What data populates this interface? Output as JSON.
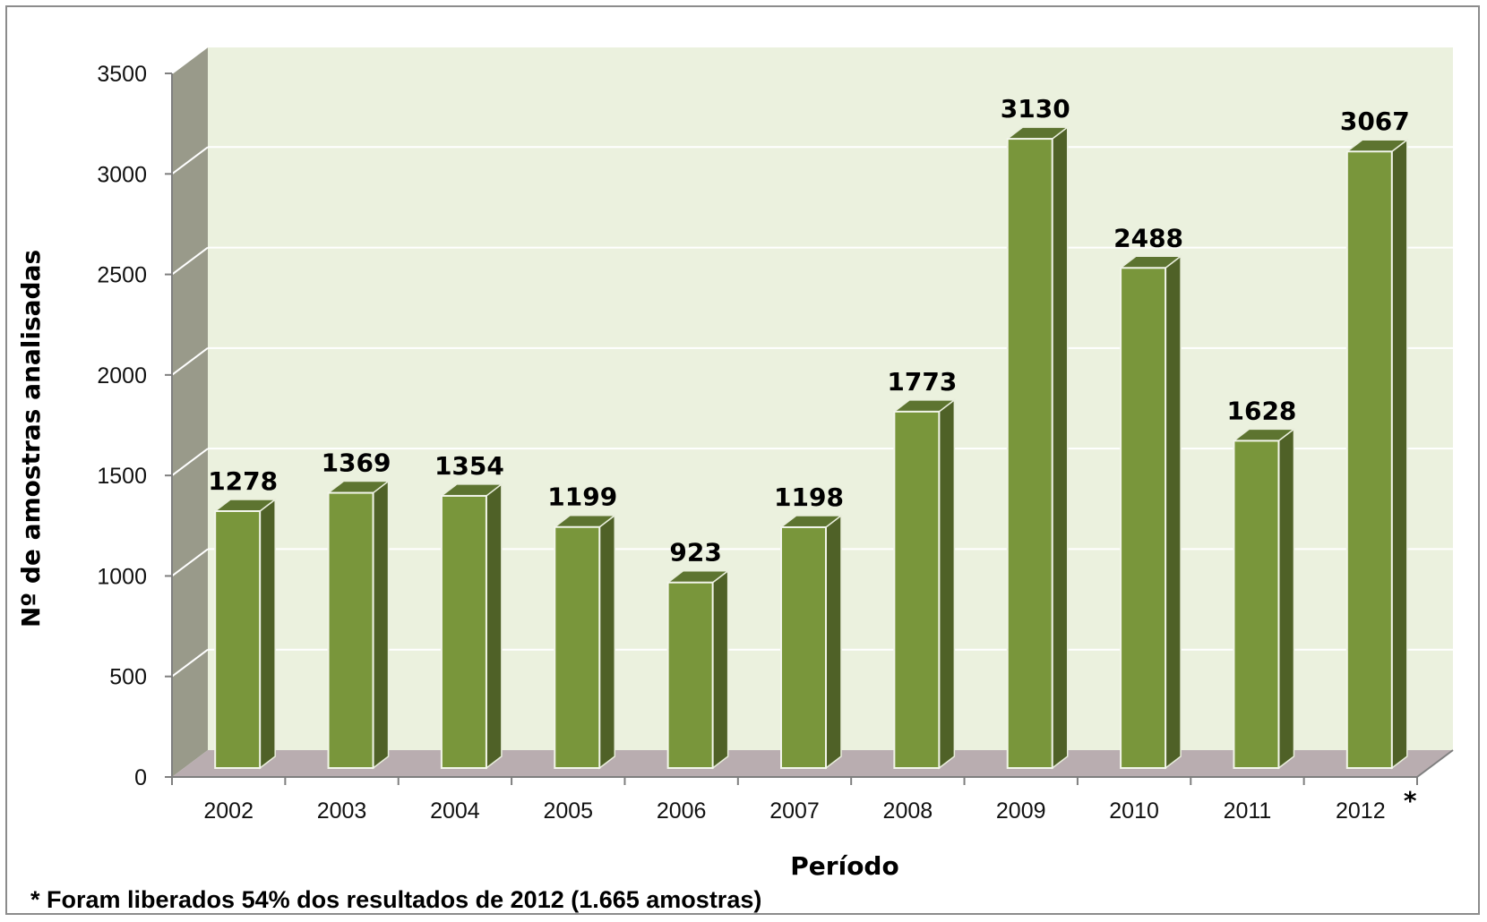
{
  "chart_data": {
    "type": "bar",
    "style": "3d-column",
    "categories": [
      "2002",
      "2003",
      "2004",
      "2005",
      "2006",
      "2007",
      "2008",
      "2009",
      "2010",
      "2011",
      "2012"
    ],
    "category_marks": [
      "",
      "",
      "",
      "",
      "",
      "",
      "",
      "",
      "",
      "",
      "*"
    ],
    "values": [
      1278,
      1369,
      1354,
      1199,
      923,
      1198,
      1773,
      3130,
      2488,
      1628,
      3067
    ],
    "data_labels": [
      "1278",
      "1369",
      "1354",
      "1199",
      "923",
      "1198",
      "1773",
      "3130",
      "2488",
      "1628",
      "3067"
    ],
    "xlabel": "Período",
    "ylabel": "Nº de amostras analisadas",
    "ylim": [
      0,
      3500
    ],
    "yticks": [
      0,
      500,
      1000,
      1500,
      2000,
      2500,
      3000,
      3500
    ],
    "grid": true,
    "legend": "none"
  },
  "footnote": "* Foram liberados 54% dos resultados de 2012 (1.665 amostras)",
  "colors": {
    "bar_front": "#79963b",
    "bar_side": "#4f6127",
    "bar_top": "#5d7430",
    "back_wall": "#ebf1de",
    "side_wall": "#999a8a",
    "floor": "#b9adb0",
    "gridline": "#ffffff"
  }
}
